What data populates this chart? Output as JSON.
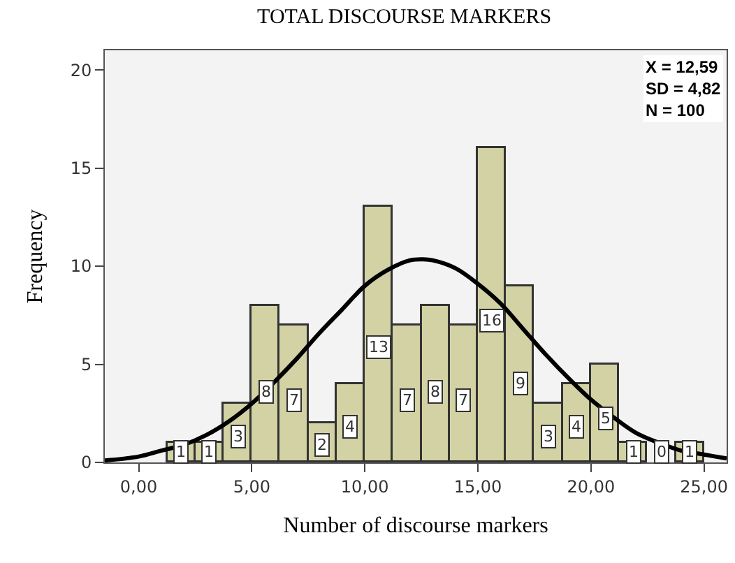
{
  "chart_data": {
    "type": "histogram",
    "title": "TOTAL DISCOURSE MARKERS",
    "xlabel": "Number of discourse markers",
    "ylabel": "Frequency",
    "bins": [
      1.25,
      2.5,
      3.75,
      5.0,
      6.25,
      7.5,
      8.75,
      10.0,
      11.25,
      12.5,
      13.75,
      15.0,
      16.25,
      17.5,
      18.75,
      20.0,
      21.25,
      22.5,
      23.75,
      25.0
    ],
    "values": [
      1,
      1,
      3,
      8,
      7,
      2,
      4,
      13,
      7,
      8,
      7,
      16,
      9,
      3,
      4,
      5,
      1,
      0,
      1
    ],
    "color": "#d2d2a4",
    "value_labels": [
      "1",
      "1",
      "3",
      "8",
      "7",
      "2",
      "4",
      "13",
      "7",
      "8",
      "7",
      "16",
      "9",
      "3",
      "4",
      "5",
      "1",
      "0",
      "1"
    ],
    "series": [
      {
        "type": "line",
        "color": "#000000",
        "x": [
          -1.5,
          0,
          1,
          2,
          3,
          4,
          5,
          6,
          7,
          8,
          9,
          10,
          11,
          12,
          12.59,
          13,
          14,
          15,
          16,
          17,
          18,
          19,
          20,
          21,
          22,
          23,
          24,
          25,
          26
        ],
        "values": [
          0.1,
          0.3,
          0.6,
          0.9,
          1.4,
          2.1,
          3.0,
          4.1,
          5.3,
          6.6,
          7.8,
          9.0,
          9.8,
          10.3,
          10.35,
          10.3,
          9.9,
          9.1,
          8.1,
          6.8,
          5.5,
          4.3,
          3.2,
          2.3,
          1.5,
          1.0,
          0.6,
          0.4,
          0.2
        ]
      }
    ],
    "xlim": [
      -1.5,
      26
    ],
    "ylim": [
      0,
      21
    ],
    "xticks": [
      {
        "value": 0,
        "label": "0,00"
      },
      {
        "value": 5,
        "label": "5,00"
      },
      {
        "value": 10,
        "label": "10,00"
      },
      {
        "value": 15,
        "label": "15,00"
      },
      {
        "value": 20,
        "label": "20,00"
      },
      {
        "value": 25,
        "label": "25,00"
      }
    ],
    "yticks": [
      0,
      5,
      10,
      15,
      20
    ],
    "annotations": [
      "X = 12,59",
      "SD = 4,82",
      "N = 100"
    ],
    "grid": false
  }
}
